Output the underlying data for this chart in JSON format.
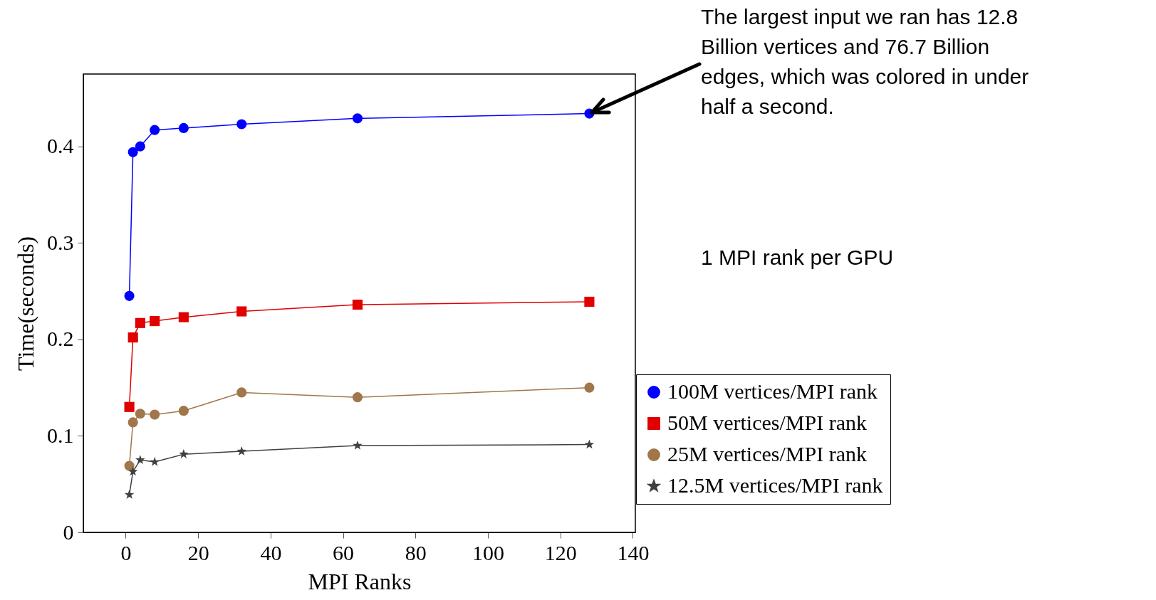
{
  "chart_data": {
    "type": "line",
    "xlabel": "MPI Ranks",
    "ylabel": "Time(seconds)",
    "x": [
      1,
      2,
      4,
      8,
      16,
      32,
      64,
      128
    ],
    "series": [
      {
        "name": "100M vertices/MPI rank",
        "color": "#0000ff",
        "marker": "circle",
        "values": [
          0.245,
          0.394,
          0.4,
          0.417,
          0.419,
          0.423,
          0.429,
          0.434
        ]
      },
      {
        "name": "50M vertices/MPI rank",
        "color": "#e00000",
        "marker": "square",
        "values": [
          0.13,
          0.202,
          0.217,
          0.219,
          0.223,
          0.229,
          0.236,
          0.239
        ]
      },
      {
        "name": "25M vertices/MPI rank",
        "color": "#a0764a",
        "marker": "circle",
        "values": [
          0.069,
          0.114,
          0.123,
          0.122,
          0.126,
          0.145,
          0.14,
          0.15
        ]
      },
      {
        "name": "12.5M vertices/MPI rank",
        "color": "#404040",
        "marker": "star",
        "values": [
          0.039,
          0.063,
          0.075,
          0.073,
          0.081,
          0.084,
          0.09,
          0.091
        ]
      }
    ],
    "xlim": [
      -11.7,
      140.7
    ],
    "xticks": [
      0,
      20,
      40,
      60,
      80,
      100,
      120,
      140
    ],
    "ylim": [
      0,
      0.475
    ],
    "yticks": [
      0,
      0.1,
      0.2,
      0.3,
      0.4
    ],
    "grid": false,
    "legend": "bottom right",
    "annotations": [
      {
        "text": "The largest input we ran has 12.8 Billion vertices and 76.7 Billion edges, which was colored in under half a second.",
        "x": 128,
        "y": 0.434
      },
      "1 MPI rank per GPU"
    ]
  }
}
